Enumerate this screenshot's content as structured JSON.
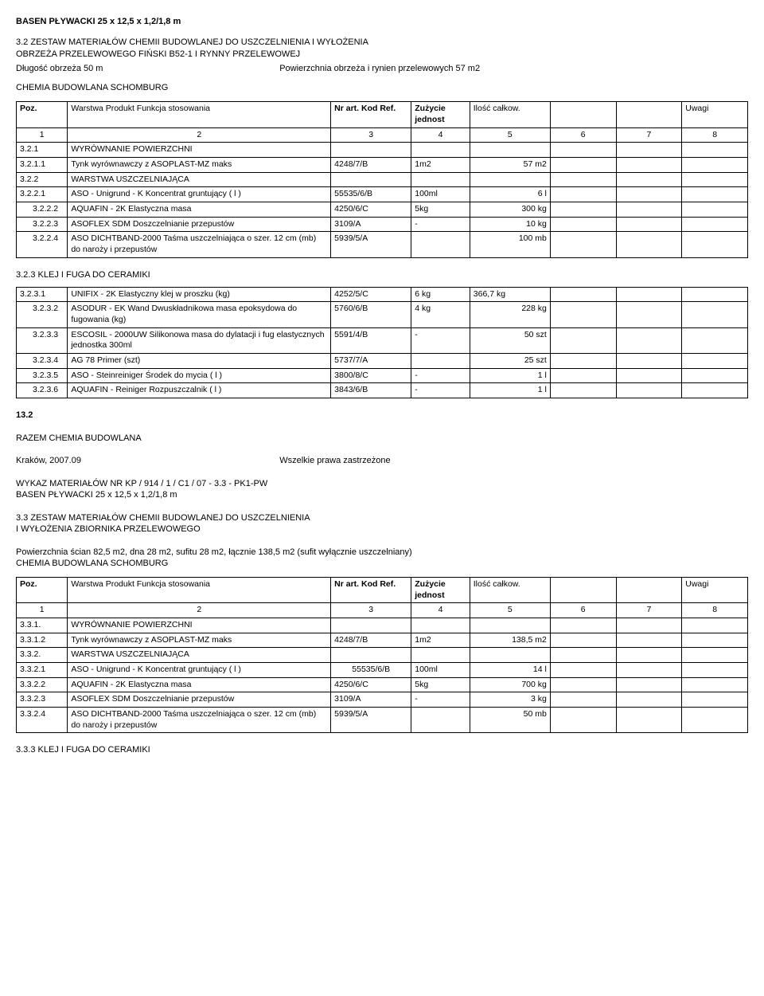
{
  "title": "BASEN PŁYWACKI 25 x 12,5 x 1,2/1,8 m",
  "sec32_head1": "3.2 ZESTAW MATERIAŁÓW CHEMII BUDOWLANEJ DO USZCZELNIENIA I WYŁOŻENIA",
  "sec32_head2": "OBRZEŻA PRZELEWOWEGO FIŃSKI B52-1 I RYNNY PRZELEWOWEJ",
  "sec32_dim_a": "Długość obrzeża 50 m",
  "sec32_dim_b": "Powierzchnia obrzeża i rynien przelewowych 57 m2",
  "chemia_label": "CHEMIA BUDOWLANA SCHOMBURG",
  "hdr": {
    "poz": "Poz.",
    "warstwa": "Warstwa Produkt Funkcja stosowania",
    "kod": "Nr art. Kod Ref.",
    "zuz": "Zużycie jednost",
    "ilosc": "Ilość całkow.",
    "uwagi": "Uwagi",
    "c1": "1",
    "c2": "2",
    "c3": "3",
    "c4": "4",
    "c5": "5",
    "c6": "6",
    "c7": "7",
    "c8": "8"
  },
  "t1": {
    "r1": {
      "a": "3.2.1",
      "b": "WYRÓWNANIE POWIERZCHNI"
    },
    "r2": {
      "a": "3.2.1.1",
      "b": "Tynk wyrównawczy z ASOPLAST-MZ maks",
      "c": "4248/7/B",
      "d": "1m2",
      "e": "57 m2"
    },
    "r3": {
      "a": "3.2.2",
      "b": "WARSTWA USZCZELNIAJĄCA"
    },
    "r4": {
      "a": "3.2.2.1",
      "b": "ASO - Unigrund - K Koncentrat gruntujący ( l )",
      "c": "55535/6/B",
      "d": "100ml",
      "e": "6 l"
    },
    "r5": {
      "a": "3.2.2.2",
      "b": "AQUAFIN - 2K Elastyczna masa",
      "c": "4250/6/C",
      "d": "5kg",
      "e": "300 kg"
    },
    "r6": {
      "a": "3.2.2.3",
      "b": "ASOFLEX SDM Doszczelnianie przepustów",
      "c": "3109/A",
      "d": "-",
      "e": "10 kg"
    },
    "r7": {
      "a": "3.2.2.4",
      "b": "ASO DICHTBAND-2000 Taśma uszczelniająca o szer. 12 cm (mb) do naroży i przepustów",
      "c": "5939/5/A",
      "d": "",
      "e": "100 mb"
    }
  },
  "sec323": "3.2.3    KLEJ I FUGA DO CERAMIKI",
  "t2": {
    "r1": {
      "a": "3.2.3.1",
      "b": "UNIFIX - 2K Elastyczny klej w proszku (kg)",
      "c": "4252/5/C",
      "d": "6 kg",
      "e": "366,7 kg"
    },
    "r2": {
      "a": "3.2.3.2",
      "b": "ASODUR - EK Wand Dwuskładnikowa masa epoksydowa do fugowania (kg)",
      "c": "5760/6/B",
      "d": "4 kg",
      "e": "228 kg"
    },
    "r3": {
      "a": "3.2.3.3",
      "b": "ESCOSIL - 2000UW Silikonowa masa do dylatacji i fug elastycznych jednostka 300ml",
      "c": "5591/4/B",
      "d": "-",
      "e": "50 szt"
    },
    "r4": {
      "a": "3.2.3.4",
      "b": "AG 78 Primer (szt)",
      "c": "5737/7/A",
      "d": "",
      "e": "25 szt"
    },
    "r5": {
      "a": "3.2.3.5",
      "b": "ASO - Steinreiniger Środek do mycia ( l )",
      "c": "3800/8/C",
      "d": "-",
      "e": "1 l"
    },
    "r6": {
      "a": "3.2.3.6",
      "b": "AQUAFIN - Reiniger Rozpuszczalnik ( l )",
      "c": "3843/6/B",
      "d": "-",
      "e": "1 l"
    }
  },
  "s132": "13.2",
  "razem": "RAZEM CHEMIA BUDOWLANA",
  "krakow": "Kraków, 2007.09",
  "prawa": "Wszelkie prawa zastrzeżone",
  "wykaz1": "WYKAZ   MATERIAŁÓW NR KP / 914 / 1 / C1 / 07 - 3.3 - PK1-PW",
  "wykaz2": "BASEN PŁYWACKI 25 x 12,5 x 1,2/1,8 m",
  "sec33a": "3.3 ZESTAW MATERIAŁÓW CHEMII BUDOWLANEJ DO USZCZELNIENIA",
  "sec33b": "I WYŁOŻENIA ZBIORNIKA PRZELEWOWEGO",
  "pow33": "Powierzchnia ścian 82,5 m2, dna 28 m2, sufitu 28 m2, łącznie 138,5 m2 (sufit wyłącznie uszczelniany)",
  "hdr2": {
    "poz": "Poz.",
    "warstwa": "Warstwa Produkt Funkcja stosowania",
    "kod": "Nr art. Kod Ref.",
    "zuz": "Zużycie jednost",
    "ilosc": "Ilość całkow.",
    "uwagi": "Uwagi"
  },
  "t3": {
    "r1": {
      "a": "3.3.1.",
      "b": "WYRÓWNANIE POWIERZCHNI"
    },
    "r2": {
      "a": "3.3.1.2",
      "b": "Tynk wyrównawczy z ASOPLAST-MZ maks",
      "c": "4248/7/B",
      "d": "1m2",
      "e": "138,5 m2"
    },
    "r3": {
      "a": "3.3.2.",
      "b": "WARSTWA USZCZELNIAJĄCA"
    },
    "r4": {
      "a": "3.3.2.1",
      "b": "ASO - Unigrund - K Koncentrat gruntujący ( l )",
      "c": "55535/6/B",
      "d": "100ml",
      "e": "14 l"
    },
    "r5": {
      "a": "3.3.2.2",
      "b": "AQUAFIN - 2K Elastyczna masa",
      "c": "4250/6/C",
      "d": "5kg",
      "e": "700 kg"
    },
    "r6": {
      "a": "3.3.2.3",
      "b": "ASOFLEX SDM Doszczelnianie przepustów",
      "c": "3109/A",
      "d": "-",
      "e": "3 kg"
    },
    "r7": {
      "a": "3.3.2.4",
      "b": "ASO DICHTBAND-2000 Taśma uszczelniająca o szer. 12 cm (mb) do naroży i przepustów",
      "c": "5939/5/A",
      "d": "",
      "e": "50 mb"
    }
  },
  "sec333": "3.3.3    KLEJ I FUGA DO CERAMIKI"
}
